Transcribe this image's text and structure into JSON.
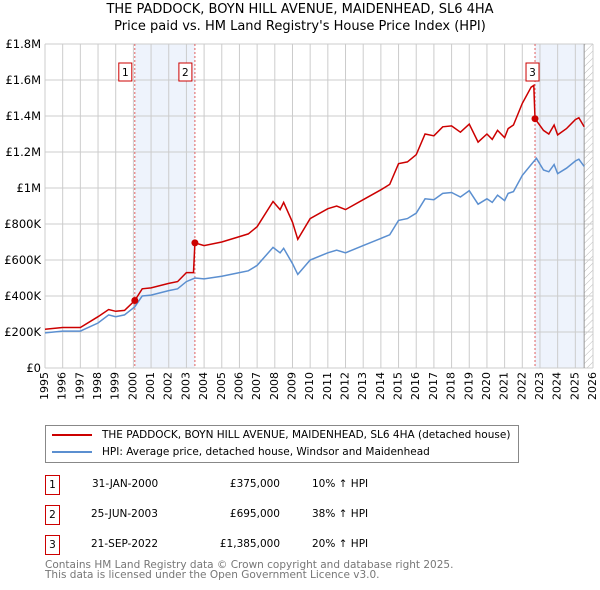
{
  "chart_data": {
    "type": "line",
    "title": "THE PADDOCK, BOYN HILL AVENUE, MAIDENHEAD, SL6 4HA",
    "subtitle": "Price paid vs. HM Land Registry's House Price Index (HPI)",
    "xlim": [
      1995,
      2026
    ],
    "ylim": [
      0,
      1800000
    ],
    "x_ticks": [
      "1995",
      "1996",
      "1997",
      "1998",
      "1999",
      "2000",
      "2001",
      "2002",
      "2003",
      "2004",
      "2005",
      "2006",
      "2007",
      "2008",
      "2009",
      "2010",
      "2011",
      "2012",
      "2013",
      "2014",
      "2015",
      "2016",
      "2017",
      "2018",
      "2019",
      "2020",
      "2021",
      "2022",
      "2023",
      "2024",
      "2025",
      "2026"
    ],
    "y_ticks": [
      {
        "v": 0,
        "l": "£0"
      },
      {
        "v": 200000,
        "l": "£200K"
      },
      {
        "v": 400000,
        "l": "£400K"
      },
      {
        "v": 600000,
        "l": "£600K"
      },
      {
        "v": 800000,
        "l": "£800K"
      },
      {
        "v": 1000000,
        "l": "£1M"
      },
      {
        "v": 1200000,
        "l": "£1.2M"
      },
      {
        "v": 1400000,
        "l": "£1.4M"
      },
      {
        "v": 1600000,
        "l": "£1.6M"
      },
      {
        "v": 1800000,
        "l": "£1.8M"
      }
    ],
    "grid": true,
    "shaded_ranges": [
      [
        2000.08,
        2003.48
      ],
      [
        2022.72,
        2025.5
      ]
    ],
    "hatched_from": 2025.5,
    "series": [
      {
        "name": "THE PADDOCK, BOYN HILL AVENUE, MAIDENHEAD, SL6 4HA (detached house)",
        "color": "#cc0000",
        "points": [
          [
            1995,
            215
          ],
          [
            1996,
            225
          ],
          [
            1997,
            225
          ],
          [
            1998,
            285
          ],
          [
            1998.6,
            325
          ],
          [
            1999,
            315
          ],
          [
            1999.5,
            320
          ],
          [
            2000.08,
            375
          ],
          [
            2000.5,
            440
          ],
          [
            2001,
            445
          ],
          [
            2002,
            470
          ],
          [
            2002.5,
            480
          ],
          [
            2003,
            530
          ],
          [
            2003.4,
            530
          ],
          [
            2003.48,
            695
          ],
          [
            2004,
            680
          ],
          [
            2005,
            700
          ],
          [
            2006,
            730
          ],
          [
            2006.5,
            745
          ],
          [
            2007,
            785
          ],
          [
            2007.9,
            925
          ],
          [
            2008.3,
            880
          ],
          [
            2008.5,
            920
          ],
          [
            2009,
            810
          ],
          [
            2009.3,
            715
          ],
          [
            2010,
            830
          ],
          [
            2011,
            885
          ],
          [
            2011.5,
            900
          ],
          [
            2012,
            880
          ],
          [
            2013,
            935
          ],
          [
            2014,
            990
          ],
          [
            2014.5,
            1020
          ],
          [
            2015,
            1135
          ],
          [
            2015.5,
            1145
          ],
          [
            2016,
            1185
          ],
          [
            2016.5,
            1300
          ],
          [
            2017,
            1290
          ],
          [
            2017.5,
            1340
          ],
          [
            2018,
            1345
          ],
          [
            2018.5,
            1310
          ],
          [
            2019,
            1355
          ],
          [
            2019.5,
            1255
          ],
          [
            2020,
            1300
          ],
          [
            2020.3,
            1270
          ],
          [
            2020.6,
            1320
          ],
          [
            2021,
            1280
          ],
          [
            2021.2,
            1330
          ],
          [
            2021.5,
            1350
          ],
          [
            2022,
            1470
          ],
          [
            2022.5,
            1560
          ],
          [
            2022.65,
            1570
          ],
          [
            2022.72,
            1385
          ],
          [
            2023.2,
            1320
          ],
          [
            2023.5,
            1300
          ],
          [
            2023.8,
            1350
          ],
          [
            2024,
            1295
          ],
          [
            2024.5,
            1330
          ],
          [
            2025,
            1380
          ],
          [
            2025.2,
            1390
          ],
          [
            2025.5,
            1340
          ]
        ]
      },
      {
        "name": "HPI: Average price, detached house, Windsor and Maidenhead",
        "color": "#5b8fd0",
        "points": [
          [
            1995,
            195
          ],
          [
            1996,
            205
          ],
          [
            1997,
            205
          ],
          [
            1998,
            250
          ],
          [
            1998.6,
            295
          ],
          [
            1999,
            285
          ],
          [
            1999.5,
            295
          ],
          [
            2000.08,
            340
          ],
          [
            2000.5,
            400
          ],
          [
            2001,
            405
          ],
          [
            2002,
            430
          ],
          [
            2002.5,
            440
          ],
          [
            2003,
            480
          ],
          [
            2003.48,
            500
          ],
          [
            2004,
            495
          ],
          [
            2005,
            510
          ],
          [
            2006,
            530
          ],
          [
            2006.5,
            540
          ],
          [
            2007,
            570
          ],
          [
            2007.9,
            670
          ],
          [
            2008.3,
            640
          ],
          [
            2008.5,
            665
          ],
          [
            2009,
            580
          ],
          [
            2009.3,
            520
          ],
          [
            2010,
            600
          ],
          [
            2011,
            640
          ],
          [
            2011.5,
            655
          ],
          [
            2012,
            640
          ],
          [
            2013,
            680
          ],
          [
            2014,
            720
          ],
          [
            2014.5,
            740
          ],
          [
            2015,
            820
          ],
          [
            2015.5,
            830
          ],
          [
            2016,
            860
          ],
          [
            2016.5,
            940
          ],
          [
            2017,
            935
          ],
          [
            2017.5,
            970
          ],
          [
            2018,
            975
          ],
          [
            2018.5,
            950
          ],
          [
            2019,
            985
          ],
          [
            2019.5,
            910
          ],
          [
            2020,
            940
          ],
          [
            2020.3,
            920
          ],
          [
            2020.6,
            960
          ],
          [
            2021,
            930
          ],
          [
            2021.2,
            970
          ],
          [
            2021.5,
            980
          ],
          [
            2022,
            1070
          ],
          [
            2022.5,
            1130
          ],
          [
            2022.8,
            1165
          ],
          [
            2023.2,
            1100
          ],
          [
            2023.5,
            1090
          ],
          [
            2023.8,
            1130
          ],
          [
            2024,
            1080
          ],
          [
            2024.5,
            1110
          ],
          [
            2025,
            1150
          ],
          [
            2025.2,
            1160
          ],
          [
            2025.5,
            1120
          ]
        ]
      }
    ],
    "value_unit": "thousands GBP",
    "sales": [
      {
        "id": "1",
        "x": 2000.08,
        "value": 375000,
        "date": "31-JAN-2000",
        "price": "£375,000",
        "hpi": "10% ↑ HPI"
      },
      {
        "id": "2",
        "x": 2003.48,
        "value": 695000,
        "date": "25-JUN-2003",
        "price": "£695,000",
        "hpi": "38% ↑ HPI"
      },
      {
        "id": "3",
        "x": 2022.72,
        "value": 1385000,
        "date": "21-SEP-2022",
        "price": "£1,385,000",
        "hpi": "20% ↑ HPI"
      }
    ]
  },
  "footer": [
    "Contains HM Land Registry data © Crown copyright and database right 2025.",
    "This data is licensed under the Open Government Licence v3.0."
  ]
}
